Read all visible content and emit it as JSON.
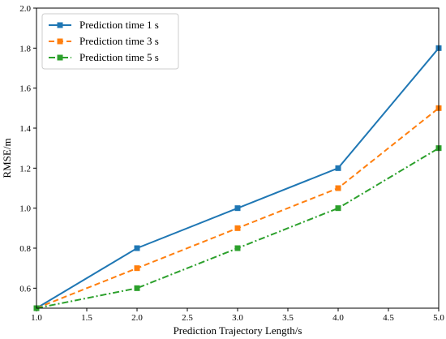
{
  "chart_data": {
    "type": "line",
    "xlabel": "Prediction Trajectory Length/s",
    "ylabel": "RMSE/m",
    "xlim": [
      1.0,
      5.0
    ],
    "ylim": [
      0.5,
      2.0
    ],
    "x_ticks": [
      "1.0",
      "1.5",
      "2.0",
      "2.5",
      "3.0",
      "3.5",
      "4.0",
      "4.5",
      "5.0"
    ],
    "y_ticks": [
      "0.6",
      "0.8",
      "1.0",
      "1.2",
      "1.4",
      "1.6",
      "1.8",
      "2.0"
    ],
    "grid": false,
    "legend_position": "top-left",
    "series": [
      {
        "name": "Prediction time 1 s",
        "color": "#1f77b4",
        "line_style": "solid",
        "marker": "square",
        "x": [
          1.0,
          2.0,
          3.0,
          4.0,
          5.0
        ],
        "values": [
          0.5,
          0.8,
          1.0,
          1.2,
          1.8
        ]
      },
      {
        "name": "Prediction time 3 s",
        "color": "#ff7f0e",
        "line_style": "dashed",
        "marker": "square",
        "x": [
          1.0,
          2.0,
          3.0,
          4.0,
          5.0
        ],
        "values": [
          0.5,
          0.7,
          0.9,
          1.1,
          1.5
        ]
      },
      {
        "name": "Prediction time 5 s",
        "color": "#2ca02c",
        "line_style": "dashdot",
        "marker": "square",
        "x": [
          1.0,
          2.0,
          3.0,
          4.0,
          5.0
        ],
        "values": [
          0.5,
          0.6,
          0.8,
          1.0,
          1.3
        ]
      }
    ]
  }
}
